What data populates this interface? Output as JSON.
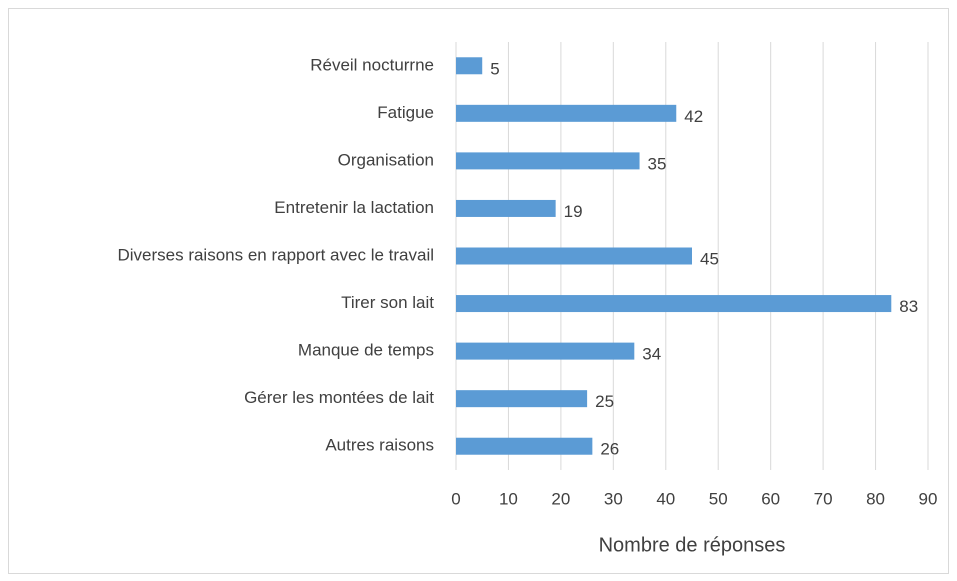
{
  "chart_data": {
    "type": "bar",
    "orientation": "horizontal",
    "x_label": "Nombre de réponses",
    "categories": [
      "Réveil nocturrne",
      "Fatigue",
      "Organisation",
      "Entretenir la lactation",
      "Diverses raisons en rapport avec le travail",
      "Tirer son lait",
      "Manque de temps",
      "Gérer les montées de lait",
      "Autres raisons"
    ],
    "values": [
      5,
      42,
      35,
      19,
      45,
      83,
      34,
      25,
      26
    ],
    "color": "#5b9bd5",
    "xlim": [
      0,
      90
    ],
    "xticks": [
      0,
      10,
      20,
      30,
      40,
      50,
      60,
      70,
      80,
      90
    ],
    "grid": true
  }
}
